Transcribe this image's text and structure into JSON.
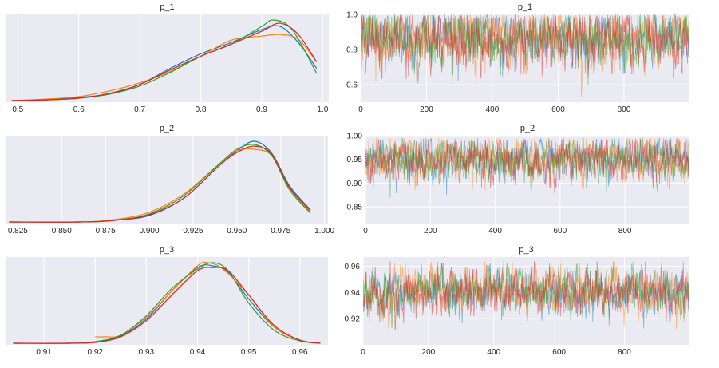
{
  "colors": [
    "#1f77b4",
    "#ff7f0e",
    "#2ca02c",
    "#d62728"
  ],
  "chart_data": [
    {
      "type": "line",
      "kind": "density",
      "title": "p_1",
      "xlim": [
        0.48,
        1.01
      ],
      "xticks": [
        0.5,
        0.6,
        0.7,
        0.8,
        0.9,
        1.0
      ],
      "xtick_labels": [
        "0.5",
        "0.6",
        "0.7",
        "0.8",
        "0.9",
        "1.0"
      ],
      "grid": true,
      "series": [
        {
          "x": [
            0.49,
            0.55,
            0.6,
            0.65,
            0.7,
            0.75,
            0.8,
            0.85,
            0.9,
            0.93,
            0.96,
            0.99
          ],
          "y": [
            0.0,
            0.01,
            0.04,
            0.08,
            0.2,
            0.4,
            0.58,
            0.72,
            0.88,
            0.92,
            0.72,
            0.4
          ]
        },
        {
          "x": [
            0.49,
            0.55,
            0.6,
            0.65,
            0.7,
            0.75,
            0.8,
            0.85,
            0.9,
            0.93,
            0.96,
            0.99
          ],
          "y": [
            0.0,
            0.02,
            0.05,
            0.12,
            0.22,
            0.36,
            0.55,
            0.75,
            0.8,
            0.82,
            0.76,
            0.48
          ]
        },
        {
          "x": [
            0.49,
            0.55,
            0.6,
            0.65,
            0.7,
            0.75,
            0.8,
            0.85,
            0.9,
            0.92,
            0.95,
            0.99
          ],
          "y": [
            0.0,
            0.01,
            0.03,
            0.08,
            0.18,
            0.35,
            0.55,
            0.7,
            0.92,
            1.0,
            0.88,
            0.34
          ]
        },
        {
          "x": [
            0.49,
            0.55,
            0.6,
            0.65,
            0.7,
            0.75,
            0.8,
            0.85,
            0.9,
            0.93,
            0.96,
            0.99
          ],
          "y": [
            0.0,
            0.01,
            0.03,
            0.09,
            0.2,
            0.38,
            0.55,
            0.7,
            0.86,
            0.96,
            0.82,
            0.48
          ]
        }
      ]
    },
    {
      "type": "line",
      "kind": "trace",
      "title": "p_1",
      "xlim": [
        0,
        999
      ],
      "ylim": [
        0.5,
        1.0
      ],
      "xticks": [
        0,
        200,
        400,
        600,
        800
      ],
      "xtick_labels": [
        "0",
        "200",
        "400",
        "600",
        "800"
      ],
      "yticks": [
        0.6,
        0.8,
        1.0
      ],
      "ytick_labels": [
        "0.6",
        "0.8",
        "1.0"
      ],
      "grid": true,
      "chains": [
        {
          "mean": 0.86,
          "sd": 0.085,
          "min": 0.5,
          "max": 1.0
        },
        {
          "mean": 0.855,
          "sd": 0.09,
          "min": 0.5,
          "max": 1.0
        },
        {
          "mean": 0.865,
          "sd": 0.08,
          "min": 0.5,
          "max": 1.0
        },
        {
          "mean": 0.86,
          "sd": 0.085,
          "min": 0.5,
          "max": 1.0
        }
      ]
    },
    {
      "type": "line",
      "kind": "density",
      "title": "p_2",
      "xlim": [
        0.818,
        1.002
      ],
      "xticks": [
        0.825,
        0.85,
        0.875,
        0.9,
        0.925,
        0.95,
        0.975,
        1.0
      ],
      "xtick_labels": [
        "0.825",
        "0.850",
        "0.875",
        "0.900",
        "0.925",
        "0.950",
        "0.975",
        "1.000"
      ],
      "grid": true,
      "series": [
        {
          "x": [
            0.82,
            0.86,
            0.88,
            0.9,
            0.92,
            0.94,
            0.95,
            0.96,
            0.97,
            0.98,
            0.992
          ],
          "y": [
            0.0,
            0.0,
            0.02,
            0.08,
            0.3,
            0.7,
            0.88,
            1.0,
            0.85,
            0.45,
            0.15
          ]
        },
        {
          "x": [
            0.82,
            0.86,
            0.88,
            0.9,
            0.92,
            0.94,
            0.95,
            0.96,
            0.97,
            0.98,
            0.992
          ],
          "y": [
            0.0,
            0.0,
            0.03,
            0.12,
            0.35,
            0.72,
            0.88,
            0.9,
            0.82,
            0.42,
            0.12
          ]
        },
        {
          "x": [
            0.82,
            0.86,
            0.88,
            0.9,
            0.92,
            0.94,
            0.95,
            0.96,
            0.97,
            0.98,
            0.992
          ],
          "y": [
            0.0,
            0.0,
            0.02,
            0.1,
            0.33,
            0.72,
            0.9,
            0.96,
            0.82,
            0.4,
            0.11
          ]
        },
        {
          "x": [
            0.82,
            0.86,
            0.88,
            0.9,
            0.92,
            0.94,
            0.95,
            0.96,
            0.97,
            0.98,
            0.992
          ],
          "y": [
            0.0,
            0.0,
            0.02,
            0.09,
            0.3,
            0.7,
            0.86,
            0.94,
            0.84,
            0.43,
            0.14
          ]
        }
      ]
    },
    {
      "type": "line",
      "kind": "trace",
      "title": "p_2",
      "xlim": [
        0,
        999
      ],
      "ylim": [
        0.815,
        1.0
      ],
      "xticks": [
        0,
        200,
        400,
        600,
        800
      ],
      "xtick_labels": [
        "0",
        "200",
        "400",
        "600",
        "800"
      ],
      "yticks": [
        0.85,
        0.9,
        0.95,
        1.0
      ],
      "ytick_labels": [
        "0.85",
        "0.90",
        "0.95",
        "1.00"
      ],
      "grid": true,
      "chains": [
        {
          "mean": 0.951,
          "sd": 0.022,
          "min": 0.86,
          "max": 0.995
        },
        {
          "mean": 0.95,
          "sd": 0.023,
          "min": 0.86,
          "max": 0.995
        },
        {
          "mean": 0.951,
          "sd": 0.022,
          "min": 0.86,
          "max": 0.995
        },
        {
          "mean": 0.95,
          "sd": 0.023,
          "min": 0.82,
          "max": 0.995
        }
      ]
    },
    {
      "type": "line",
      "kind": "density",
      "title": "p_3",
      "xlim": [
        0.9025,
        0.9655
      ],
      "xticks": [
        0.91,
        0.92,
        0.93,
        0.94,
        0.95,
        0.96
      ],
      "xtick_labels": [
        "0.91",
        "0.92",
        "0.93",
        "0.94",
        "0.95",
        "0.96"
      ],
      "grid": true,
      "series": [
        {
          "x": [
            0.904,
            0.915,
            0.92,
            0.925,
            0.93,
            0.935,
            0.94,
            0.943,
            0.946,
            0.95,
            0.955,
            0.96,
            0.964
          ],
          "y": [
            0.0,
            0.0,
            0.02,
            0.09,
            0.3,
            0.65,
            0.94,
            0.96,
            0.88,
            0.55,
            0.2,
            0.04,
            0.0
          ]
        },
        {
          "x": [
            0.92,
            0.922,
            0.925,
            0.93,
            0.935,
            0.94,
            0.942,
            0.945,
            0.95,
            0.955,
            0.96,
            0.963
          ],
          "y": [
            0.08,
            0.08,
            0.1,
            0.32,
            0.65,
            0.96,
            1.0,
            0.92,
            0.6,
            0.2,
            0.04,
            0.0
          ]
        },
        {
          "x": [
            0.904,
            0.915,
            0.92,
            0.925,
            0.93,
            0.935,
            0.94,
            0.943,
            0.946,
            0.95,
            0.955,
            0.96,
            0.964
          ],
          "y": [
            0.0,
            0.0,
            0.02,
            0.1,
            0.34,
            0.68,
            0.92,
            1.0,
            0.9,
            0.5,
            0.16,
            0.03,
            0.0
          ]
        },
        {
          "x": [
            0.904,
            0.915,
            0.92,
            0.925,
            0.93,
            0.935,
            0.94,
            0.943,
            0.946,
            0.95,
            0.955,
            0.96,
            0.964
          ],
          "y": [
            0.0,
            0.0,
            0.01,
            0.08,
            0.28,
            0.6,
            0.9,
            0.94,
            0.9,
            0.6,
            0.22,
            0.04,
            0.0
          ]
        }
      ]
    },
    {
      "type": "line",
      "kind": "trace",
      "title": "p_3",
      "xlim": [
        0,
        999
      ],
      "ylim": [
        0.9,
        0.967
      ],
      "xticks": [
        0,
        200,
        400,
        600,
        800
      ],
      "xtick_labels": [
        "0",
        "200",
        "400",
        "600",
        "800"
      ],
      "yticks": [
        0.92,
        0.94,
        0.96
      ],
      "ytick_labels": [
        "0.92",
        "0.94",
        "0.96"
      ],
      "grid": true,
      "chains": [
        {
          "mean": 0.941,
          "sd": 0.0085,
          "min": 0.912,
          "max": 0.964
        },
        {
          "mean": 0.942,
          "sd": 0.0085,
          "min": 0.912,
          "max": 0.964
        },
        {
          "mean": 0.941,
          "sd": 0.0085,
          "min": 0.91,
          "max": 0.964
        },
        {
          "mean": 0.941,
          "sd": 0.0085,
          "min": 0.905,
          "max": 0.964
        }
      ]
    }
  ]
}
